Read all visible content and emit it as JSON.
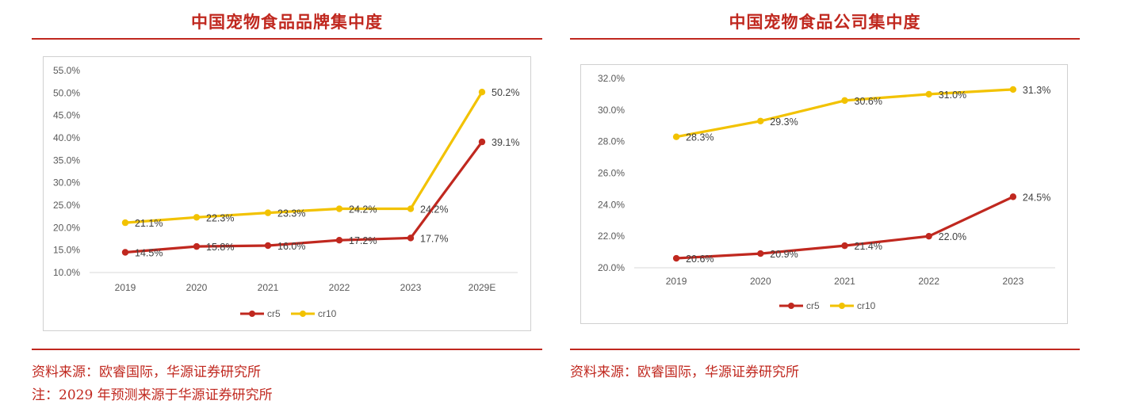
{
  "left": {
    "title": "中国宠物食品品牌集中度",
    "source": "资料来源：欧睿国际，华源证券研究所",
    "note": "注：2029 年预测来源于华源证券研究所"
  },
  "right": {
    "title": "中国宠物食品公司集中度",
    "source": "资料来源：欧睿国际，华源证券研究所"
  },
  "colors": {
    "cr5": "#c0281f",
    "cr10": "#f2c200",
    "accent": "#c0281f"
  },
  "chart_data": [
    {
      "type": "line",
      "title": "中国宠物食品品牌集中度",
      "x": [
        "2019",
        "2020",
        "2021",
        "2022",
        "2023",
        "2029E"
      ],
      "y_ticks": [
        "55.0%",
        "50.0%",
        "45.0%",
        "40.0%",
        "35.0%",
        "30.0%",
        "25.0%",
        "20.0%",
        "15.0%",
        "10.0%"
      ],
      "ylim": [
        10,
        55
      ],
      "grid": false,
      "legend_position": "bottom",
      "series": [
        {
          "name": "cr5",
          "values": [
            14.5,
            15.8,
            16.0,
            17.2,
            17.7,
            39.1
          ],
          "labels": [
            "14.5%",
            "15.8%",
            "16.0%",
            "17.2%",
            "17.7%",
            "39.1%"
          ]
        },
        {
          "name": "cr10",
          "values": [
            21.1,
            22.3,
            23.3,
            24.2,
            24.2,
            50.2
          ],
          "labels": [
            "21.1%",
            "22.3%",
            "23.3%",
            "24.2%",
            "24.2%",
            "50.2%"
          ]
        }
      ]
    },
    {
      "type": "line",
      "title": "中国宠物食品公司集中度",
      "x": [
        "2019",
        "2020",
        "2021",
        "2022",
        "2023"
      ],
      "y_ticks": [
        "32.0%",
        "30.0%",
        "28.0%",
        "26.0%",
        "24.0%",
        "22.0%",
        "20.0%"
      ],
      "ylim": [
        20,
        32
      ],
      "grid": false,
      "legend_position": "bottom",
      "series": [
        {
          "name": "cr5",
          "values": [
            20.6,
            20.9,
            21.4,
            22.0,
            24.5
          ],
          "labels": [
            "20.6%",
            "20.9%",
            "21.4%",
            "22.0%",
            "24.5%"
          ]
        },
        {
          "name": "cr10",
          "values": [
            28.3,
            29.3,
            30.6,
            31.0,
            31.3
          ],
          "labels": [
            "28.3%",
            "29.3%",
            "30.6%",
            "31.0%",
            "31.3%"
          ]
        }
      ]
    }
  ]
}
